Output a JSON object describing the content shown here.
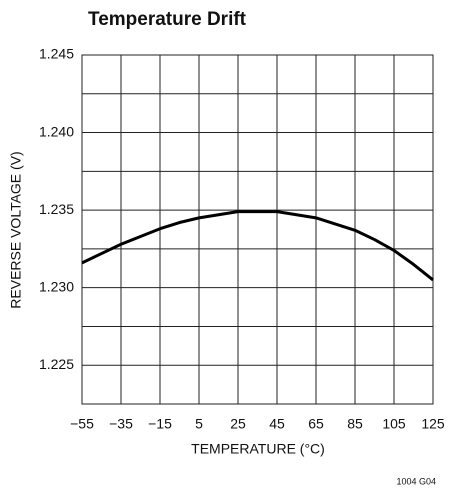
{
  "chart_data": {
    "type": "line",
    "title": "Temperature Drift",
    "x_label": "TEMPERATURE (°C)",
    "y_label": "REVERSE VOLTAGE (V)",
    "note": "1004 G04",
    "x": [
      -55,
      -45,
      -35,
      -25,
      -15,
      -5,
      5,
      15,
      25,
      35,
      45,
      55,
      65,
      75,
      85,
      95,
      105,
      115,
      125
    ],
    "values": [
      1.2316,
      1.2322,
      1.2328,
      1.2333,
      1.2338,
      1.2342,
      1.2345,
      1.2347,
      1.2349,
      1.2349,
      1.2349,
      1.2347,
      1.2345,
      1.2341,
      1.2337,
      1.2331,
      1.2324,
      1.2315,
      1.2305
    ],
    "color": "#000000",
    "xlim": [
      -55,
      125
    ],
    "xticks": [
      {
        "value": -55,
        "label": "−55"
      },
      {
        "value": -35,
        "label": "−35"
      },
      {
        "value": -15,
        "label": "−15"
      },
      5,
      25,
      45,
      65,
      85,
      105,
      125
    ],
    "ylim": [
      1.2225,
      1.245
    ],
    "yticks": [
      1.225,
      {
        "value": 1.23,
        "label": "1.230"
      },
      1.235,
      {
        "value": 1.24,
        "label": "1.240"
      },
      1.245
    ],
    "yminorticks": [
      1.2275,
      1.2325,
      1.2375,
      1.2425
    ],
    "grid": true
  }
}
